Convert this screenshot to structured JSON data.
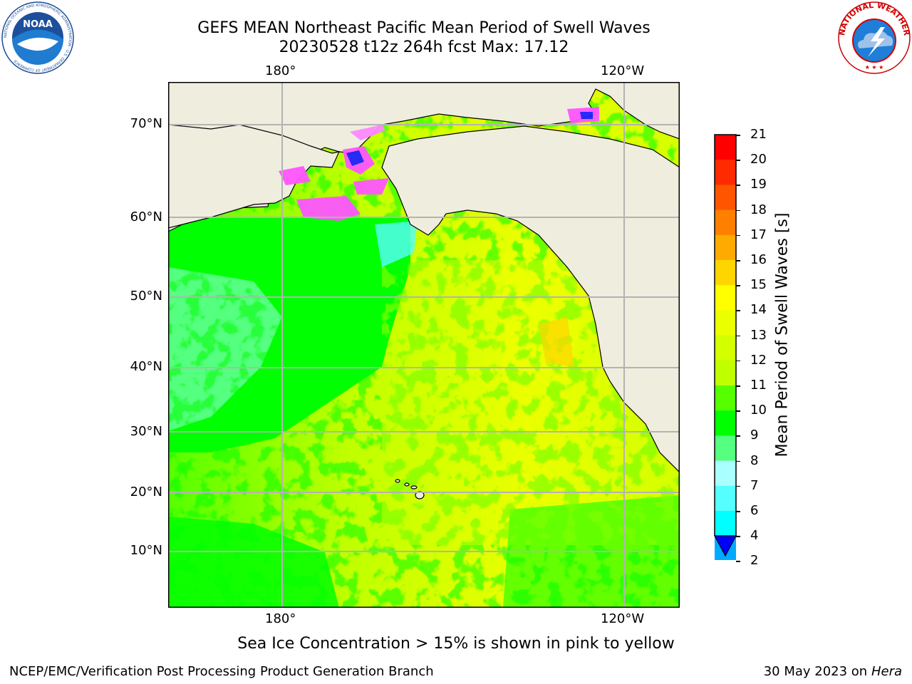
{
  "title": {
    "line1": "GEFS MEAN Northeast Pacific Mean Period of Swell Waves",
    "line2": "20230528 t12z 264h fcst   Max: 17.12"
  },
  "map": {
    "top_lon_labels": [
      "180°",
      "120°W"
    ],
    "bottom_lon_labels": [
      "180°",
      "120°W"
    ],
    "lat_labels": [
      "70°N",
      "60°N",
      "50°N",
      "40°N",
      "30°N",
      "20°N",
      "10°N"
    ],
    "colors": {
      "land": "#efedde",
      "coast": "#000000",
      "grid": "#b3b3b3"
    }
  },
  "colorbar": {
    "label": "Mean Period of Swell Waves [s]",
    "ticks": [
      "21",
      "20",
      "19",
      "18",
      "17",
      "16",
      "15",
      "14",
      "13",
      "12",
      "11",
      "10",
      "9",
      "8",
      "7",
      "6",
      "4",
      "2"
    ],
    "colors": [
      "#ff0000",
      "#ff2a00",
      "#ff5500",
      "#ff8000",
      "#ffaa00",
      "#ffd500",
      "#ffff00",
      "#eaff00",
      "#d4ff00",
      "#bfff00",
      "#55ff00",
      "#00ff00",
      "#55ff80",
      "#aaffff",
      "#55ffff",
      "#00ffff",
      "#00aaff",
      "#0055ff"
    ],
    "extend_color": "#0000ff"
  },
  "ice_note": "Sea Ice Concentration > 15% is shown in pink to yellow",
  "footer": {
    "credit": "NCEP/EMC/Verification Post Processing Product Generation Branch",
    "date": "30 May 2023 on",
    "host": "Hera"
  },
  "logos": {
    "noaa": {
      "center_text": "NOAA",
      "ring_text": "NATIONAL OCEANIC AND ATMOSPHERIC ADMINISTRATION · U.S. DEPARTMENT OF COMMERCE"
    },
    "nws": {
      "ring_text": "NATIONAL WEATHER SERVICE"
    }
  }
}
